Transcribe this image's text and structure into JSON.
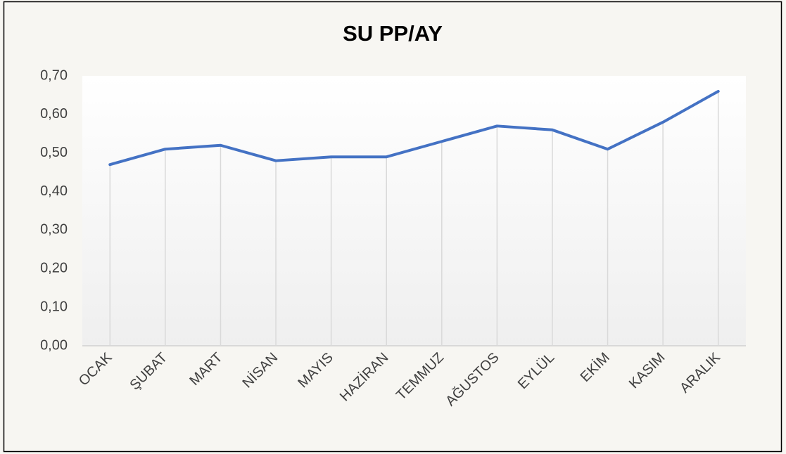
{
  "chart_data": {
    "type": "line",
    "title": "SU PP/AY",
    "categories": [
      "OCAK",
      "ŞUBAT",
      "MART",
      "NİSAN",
      "MAYIS",
      "HAZİRAN",
      "TEMMUZ",
      "AĞUSTOS",
      "EYLÜL",
      "EKİM",
      "KASIM",
      "ARALIK"
    ],
    "series": [
      {
        "name": "SU PP/AY",
        "color": "#4472c4",
        "values": [
          0.47,
          0.51,
          0.52,
          0.48,
          0.49,
          0.49,
          0.53,
          0.57,
          0.56,
          0.51,
          0.58,
          0.66
        ]
      }
    ],
    "ylim": [
      0,
      0.7
    ],
    "yticks": [
      {
        "value": 0,
        "label": "0,00"
      },
      {
        "value": 0.1,
        "label": "0,10"
      },
      {
        "value": 0.2,
        "label": "0,20"
      },
      {
        "value": 0.3,
        "label": "0,30"
      },
      {
        "value": 0.4,
        "label": "0,40"
      },
      {
        "value": 0.5,
        "label": "0,50"
      },
      {
        "value": 0.6,
        "label": "0,60"
      },
      {
        "value": 0.7,
        "label": "0,70"
      }
    ],
    "drop_lines": true
  }
}
